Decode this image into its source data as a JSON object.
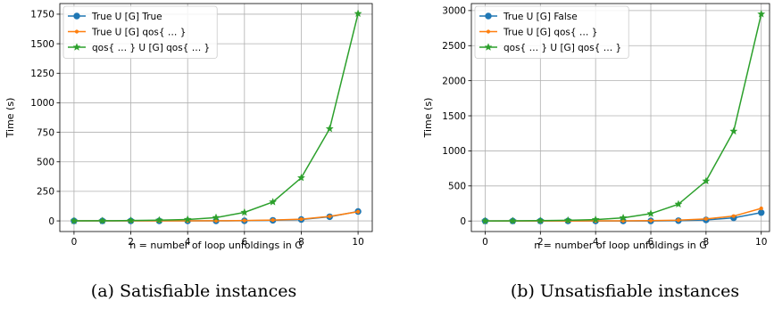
{
  "chart_data": [
    {
      "type": "line",
      "caption": "(a) Satisfiable instances",
      "xlabel": "n = number of loop unfoldings in G",
      "ylabel": "Time (s)",
      "xlim": [
        -0.5,
        10.5
      ],
      "ylim": [
        -90,
        1840
      ],
      "xticks": [
        0,
        2,
        4,
        6,
        8,
        10
      ],
      "yticks": [
        0,
        250,
        500,
        750,
        1000,
        1250,
        1500,
        1750
      ],
      "grid": true,
      "legend_position": "top-left",
      "x": [
        0,
        1,
        2,
        3,
        4,
        5,
        6,
        7,
        8,
        9,
        10
      ],
      "series": [
        {
          "name": "True U [G] True",
          "color": "#1f77b4",
          "marker": "circle",
          "values": [
            0,
            0,
            0,
            0,
            0,
            0,
            1,
            5,
            12,
            35,
            80
          ]
        },
        {
          "name": "True U [G] qos{ … }",
          "color": "#ff7f0e",
          "marker": "point",
          "values": [
            0,
            0,
            0,
            0,
            0,
            1,
            3,
            7,
            15,
            38,
            78
          ]
        },
        {
          "name": "qos{ … } U [G] qos{ … }",
          "color": "#2ca02c",
          "marker": "star",
          "values": [
            0,
            1,
            3,
            6,
            12,
            28,
            72,
            160,
            365,
            780,
            1755
          ]
        }
      ]
    },
    {
      "type": "line",
      "caption": "(b) Unsatisfiable instances",
      "xlabel": "n = number of loop unfoldings in G",
      "ylabel": "Time (s)",
      "xlim": [
        -0.5,
        10.3
      ],
      "ylim": [
        -150,
        3100
      ],
      "xticks": [
        0,
        2,
        4,
        6,
        8,
        10
      ],
      "yticks": [
        0,
        500,
        1000,
        1500,
        2000,
        2500,
        3000
      ],
      "grid": true,
      "legend_position": "top-left",
      "x": [
        0,
        1,
        2,
        3,
        4,
        5,
        6,
        7,
        8,
        9,
        10
      ],
      "series": [
        {
          "name": "True U [G] False",
          "color": "#1f77b4",
          "marker": "circle",
          "values": [
            0,
            0,
            0,
            0,
            0,
            0,
            1,
            5,
            15,
            45,
            120
          ]
        },
        {
          "name": "True U [G] qos{ … }",
          "color": "#ff7f0e",
          "marker": "point",
          "values": [
            0,
            0,
            0,
            1,
            2,
            3,
            5,
            12,
            30,
            70,
            180
          ]
        },
        {
          "name": "qos{ … } U [G] qos{ … }",
          "color": "#2ca02c",
          "marker": "star",
          "values": [
            0,
            2,
            5,
            10,
            20,
            45,
            105,
            240,
            570,
            1280,
            2950
          ]
        }
      ]
    }
  ]
}
